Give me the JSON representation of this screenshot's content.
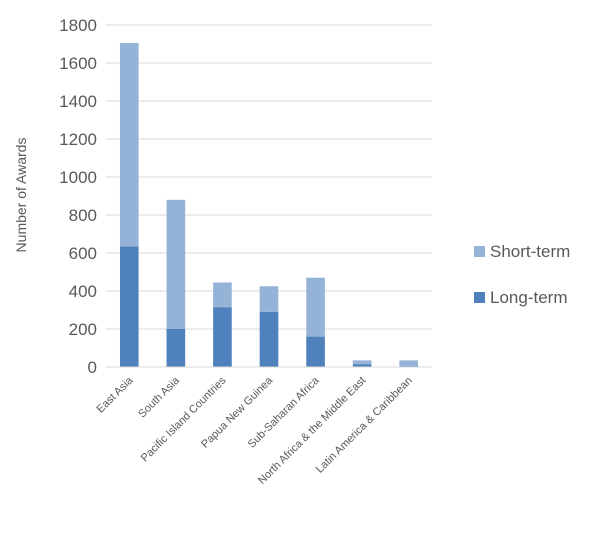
{
  "chart_data": {
    "type": "bar",
    "stacked": true,
    "categories": [
      "East Asia",
      "South Asia",
      "Pacific Island Countries",
      "Papua New Guinea",
      "Sub-Saharan Africa",
      "North Africa & the Middle East",
      "Latin America & Caribbean"
    ],
    "series": [
      {
        "name": "Long-term",
        "color": "#4f81bd",
        "values": [
          635,
          200,
          315,
          290,
          160,
          15,
          5
        ]
      },
      {
        "name": "Short-term",
        "color": "#95b3d7",
        "values": [
          1070,
          680,
          130,
          135,
          310,
          20,
          30
        ]
      }
    ],
    "title": "",
    "xlabel": "",
    "ylabel": "Number of Awards",
    "ylim": [
      0,
      1800
    ],
    "yticks": [
      0,
      200,
      400,
      600,
      800,
      1000,
      1200,
      1400,
      1600,
      1800
    ],
    "grid": true,
    "legend": "right",
    "legend_order": [
      "Short-term",
      "Long-term"
    ]
  }
}
